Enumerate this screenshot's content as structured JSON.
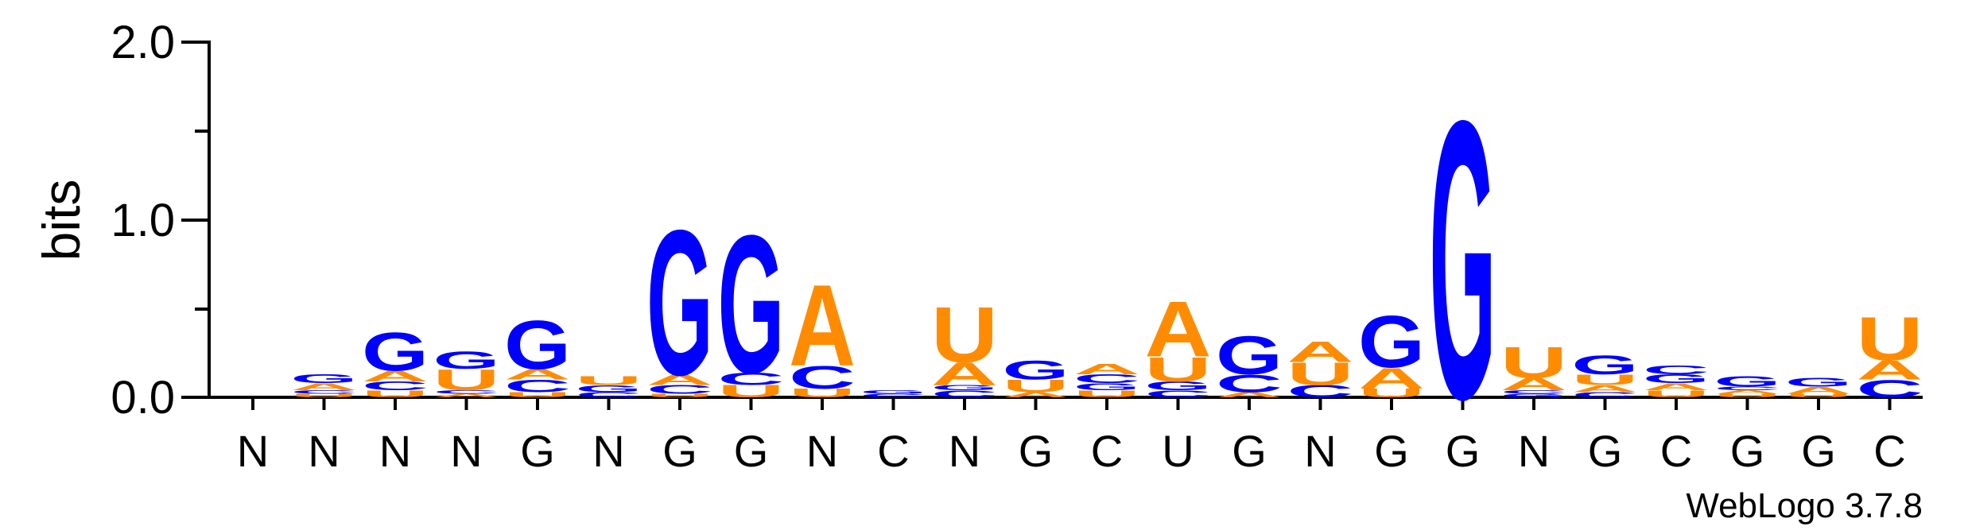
{
  "chart_data": {
    "type": "sequence-logo",
    "ylabel": "bits",
    "ylim": [
      0,
      2.0
    ],
    "yticks": [
      "0.0",
      "1.0",
      "2.0"
    ],
    "credit": "WebLogo 3.7.8",
    "colors": {
      "G": "#0000ff",
      "C": "#0000ff",
      "A": "#ff8c00",
      "U": "#ff8c00"
    },
    "positions": [
      {
        "label": "N",
        "stack": []
      },
      {
        "label": "N",
        "stack": [
          {
            "l": "U",
            "h": 0.02
          },
          {
            "l": "C",
            "h": 0.02
          },
          {
            "l": "A",
            "h": 0.04
          },
          {
            "l": "G",
            "h": 0.05
          }
        ]
      },
      {
        "label": "N",
        "stack": [
          {
            "l": "U",
            "h": 0.04
          },
          {
            "l": "C",
            "h": 0.05
          },
          {
            "l": "A",
            "h": 0.06
          },
          {
            "l": "G",
            "h": 0.22
          }
        ]
      },
      {
        "label": "N",
        "stack": [
          {
            "l": "A",
            "h": 0.02
          },
          {
            "l": "C",
            "h": 0.02
          },
          {
            "l": "U",
            "h": 0.12
          },
          {
            "l": "G",
            "h": 0.1
          }
        ]
      },
      {
        "label": "G",
        "stack": [
          {
            "l": "U",
            "h": 0.03
          },
          {
            "l": "C",
            "h": 0.07
          },
          {
            "l": "A",
            "h": 0.06
          },
          {
            "l": "G",
            "h": 0.28
          }
        ]
      },
      {
        "label": "N",
        "stack": [
          {
            "l": "C",
            "h": 0.03
          },
          {
            "l": "G",
            "h": 0.04
          },
          {
            "l": "U",
            "h": 0.05
          }
        ]
      },
      {
        "label": "G",
        "stack": [
          {
            "l": "U",
            "h": 0.02
          },
          {
            "l": "C",
            "h": 0.05
          },
          {
            "l": "A",
            "h": 0.06
          },
          {
            "l": "G",
            "h": 0.84
          }
        ]
      },
      {
        "label": "G",
        "stack": [
          {
            "l": "U",
            "h": 0.07
          },
          {
            "l": "C",
            "h": 0.07
          },
          {
            "l": "G",
            "h": 0.8
          }
        ]
      },
      {
        "label": "N",
        "stack": [
          {
            "l": "U",
            "h": 0.05
          },
          {
            "l": "C",
            "h": 0.13
          },
          {
            "l": "A",
            "h": 0.47
          }
        ]
      },
      {
        "label": "C",
        "stack": [
          {
            "l": "C",
            "h": 0.02
          },
          {
            "l": "G",
            "h": 0.02
          }
        ]
      },
      {
        "label": "N",
        "stack": [
          {
            "l": "C",
            "h": 0.04
          },
          {
            "l": "G",
            "h": 0.03
          },
          {
            "l": "A",
            "h": 0.13
          },
          {
            "l": "U",
            "h": 0.32
          }
        ]
      },
      {
        "label": "G",
        "stack": [
          {
            "l": "A",
            "h": 0.03
          },
          {
            "l": "U",
            "h": 0.07
          },
          {
            "l": "G",
            "h": 0.11
          }
        ]
      },
      {
        "label": "C",
        "stack": [
          {
            "l": "U",
            "h": 0.04
          },
          {
            "l": "G",
            "h": 0.04
          },
          {
            "l": "C",
            "h": 0.05
          },
          {
            "l": "A",
            "h": 0.06
          }
        ]
      },
      {
        "label": "U",
        "stack": [
          {
            "l": "C",
            "h": 0.04
          },
          {
            "l": "G",
            "h": 0.05
          },
          {
            "l": "U",
            "h": 0.14
          },
          {
            "l": "A",
            "h": 0.32
          }
        ]
      },
      {
        "label": "G",
        "stack": [
          {
            "l": "A",
            "h": 0.03
          },
          {
            "l": "C",
            "h": 0.1
          },
          {
            "l": "G",
            "h": 0.22
          }
        ]
      },
      {
        "label": "N",
        "stack": [
          {
            "l": "C",
            "h": 0.07
          },
          {
            "l": "U",
            "h": 0.13
          },
          {
            "l": "A",
            "h": 0.12
          }
        ]
      },
      {
        "label": "G",
        "stack": [
          {
            "l": "U",
            "h": 0.05
          },
          {
            "l": "A",
            "h": 0.12
          },
          {
            "l": "G",
            "h": 0.3
          }
        ]
      },
      {
        "label": "G",
        "stack": [
          {
            "l": "G",
            "h": 1.61
          }
        ]
      },
      {
        "label": "N",
        "stack": [
          {
            "l": "G",
            "h": 0.02
          },
          {
            "l": "C",
            "h": 0.02
          },
          {
            "l": "A",
            "h": 0.07
          },
          {
            "l": "U",
            "h": 0.18
          }
        ]
      },
      {
        "label": "G",
        "stack": [
          {
            "l": "C",
            "h": 0.03
          },
          {
            "l": "A",
            "h": 0.04
          },
          {
            "l": "U",
            "h": 0.06
          },
          {
            "l": "G",
            "h": 0.11
          }
        ]
      },
      {
        "label": "C",
        "stack": [
          {
            "l": "U",
            "h": 0.04
          },
          {
            "l": "A",
            "h": 0.04
          },
          {
            "l": "G",
            "h": 0.05
          },
          {
            "l": "C",
            "h": 0.05
          }
        ]
      },
      {
        "label": "G",
        "stack": [
          {
            "l": "U",
            "h": 0.02
          },
          {
            "l": "A",
            "h": 0.02
          },
          {
            "l": "C",
            "h": 0.02
          },
          {
            "l": "G",
            "h": 0.06
          }
        ]
      },
      {
        "label": "G",
        "stack": [
          {
            "l": "U",
            "h": 0.02
          },
          {
            "l": "A",
            "h": 0.04
          },
          {
            "l": "G",
            "h": 0.05
          }
        ]
      },
      {
        "label": "C",
        "stack": [
          {
            "l": "C",
            "h": 0.1
          },
          {
            "l": "A",
            "h": 0.11
          },
          {
            "l": "U",
            "h": 0.25
          }
        ]
      }
    ]
  }
}
